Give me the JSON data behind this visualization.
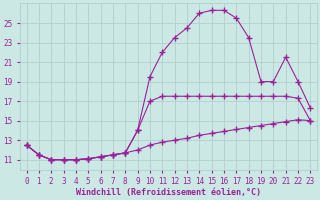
{
  "background_color": "#cce8e4",
  "grid_color": "#aacccc",
  "line_color": "#992299",
  "marker": "+",
  "markersize": 4,
  "markeredgewidth": 1.0,
  "linewidth": 0.8,
  "xlim": [
    -0.5,
    23.5
  ],
  "ylim": [
    10.0,
    27.0
  ],
  "xticks": [
    0,
    1,
    2,
    3,
    4,
    5,
    6,
    7,
    8,
    9,
    10,
    11,
    12,
    13,
    14,
    15,
    16,
    17,
    18,
    19,
    20,
    21,
    22,
    23
  ],
  "yticks": [
    11,
    13,
    15,
    17,
    19,
    21,
    23,
    25
  ],
  "xlabel": "Windchill (Refroidissement éolien,°C)",
  "xlabel_fontsize": 6.0,
  "tick_fontsize": 5.5,
  "line1_x": [
    0,
    1,
    2,
    3,
    4,
    5,
    6,
    7,
    8,
    9,
    10,
    11,
    12,
    13,
    14,
    15,
    16,
    17,
    18,
    19,
    20,
    21,
    22,
    23
  ],
  "line1_y": [
    12.5,
    11.5,
    11.0,
    11.0,
    11.0,
    11.1,
    11.3,
    11.5,
    11.7,
    12.0,
    12.5,
    12.8,
    13.0,
    13.2,
    13.5,
    13.7,
    13.9,
    14.1,
    14.3,
    14.5,
    14.7,
    14.9,
    15.1,
    15.0
  ],
  "line2_x": [
    0,
    1,
    2,
    3,
    4,
    5,
    6,
    7,
    8,
    9,
    10,
    11,
    12,
    13,
    14,
    15,
    16,
    17,
    18,
    19,
    20,
    21,
    22,
    23
  ],
  "line2_y": [
    12.5,
    11.5,
    11.0,
    11.0,
    11.0,
    11.1,
    11.3,
    11.5,
    11.7,
    14.0,
    17.0,
    17.5,
    17.5,
    17.5,
    17.5,
    17.5,
    17.5,
    17.5,
    17.5,
    17.5,
    17.5,
    17.5,
    17.3,
    15.0
  ],
  "line3_x": [
    0,
    1,
    2,
    3,
    4,
    5,
    6,
    7,
    8,
    9,
    10,
    11,
    12,
    13,
    14,
    15,
    16,
    17,
    18,
    19,
    20,
    21,
    22,
    23
  ],
  "line3_y": [
    12.5,
    11.5,
    11.0,
    11.0,
    11.0,
    11.1,
    11.3,
    11.5,
    11.7,
    14.0,
    19.5,
    22.0,
    23.5,
    24.5,
    26.0,
    26.3,
    26.3,
    25.5,
    23.5,
    19.0,
    19.0,
    21.5,
    19.0,
    16.3
  ]
}
